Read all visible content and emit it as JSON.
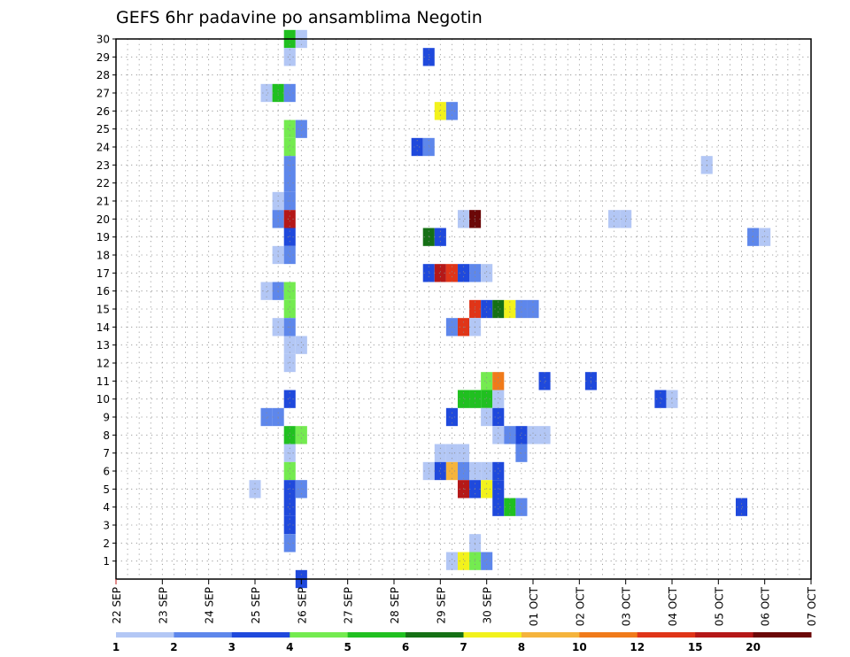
{
  "chart_data": {
    "type": "heatmap",
    "title": "GEFS 6hr padavine po ansamblima Negotin",
    "x_tick_labels": [
      "22 SEP",
      "23 SEP",
      "24 SEP",
      "25 SEP",
      "26 SEP",
      "27 SEP",
      "28 SEP",
      "29 SEP",
      "30 SEP",
      "01 OCT",
      "02 OCT",
      "03 OCT",
      "04 OCT",
      "05 OCT",
      "06 OCT",
      "07 OCT"
    ],
    "y_tick_labels": [
      "1",
      "2",
      "3",
      "4",
      "5",
      "6",
      "7",
      "8",
      "9",
      "10",
      "11",
      "12",
      "13",
      "14",
      "15",
      "16",
      "17",
      "18",
      "19",
      "20",
      "21",
      "22",
      "23",
      "24",
      "25",
      "26",
      "27",
      "28",
      "29",
      "30"
    ],
    "xlim_days": [
      0,
      15
    ],
    "ylim": [
      0,
      30
    ],
    "grid": true,
    "step_hours": 6,
    "colorbar": {
      "labels": [
        "1",
        "2",
        "3",
        "4",
        "5",
        "6",
        "7",
        "8",
        "10",
        "12",
        "15",
        "20"
      ],
      "colors": [
        "#b3c7f5",
        "#5e87eb",
        "#1f49dc",
        "#74eb50",
        "#20c020",
        "#157015",
        "#f2f21c",
        "#f5b43c",
        "#f07a1a",
        "#e03518",
        "#b51818",
        "#6b0808"
      ]
    },
    "cells": [
      {
        "m": 30,
        "d": 3.75,
        "c": 5
      },
      {
        "m": 30,
        "d": 4.0,
        "c": 1
      },
      {
        "m": 29,
        "d": 3.75,
        "c": 1
      },
      {
        "m": 29,
        "d": 6.75,
        "c": 3
      },
      {
        "m": 27,
        "d": 3.25,
        "c": 1
      },
      {
        "m": 27,
        "d": 3.5,
        "c": 5
      },
      {
        "m": 27,
        "d": 3.75,
        "c": 2
      },
      {
        "m": 26,
        "d": 7.0,
        "c": 7
      },
      {
        "m": 26,
        "d": 7.25,
        "c": 2
      },
      {
        "m": 25,
        "d": 3.75,
        "c": 4
      },
      {
        "m": 25,
        "d": 4.0,
        "c": 2
      },
      {
        "m": 24,
        "d": 3.75,
        "c": 4
      },
      {
        "m": 24,
        "d": 6.5,
        "c": 3
      },
      {
        "m": 24,
        "d": 6.75,
        "c": 2
      },
      {
        "m": 23,
        "d": 3.75,
        "c": 2
      },
      {
        "m": 23,
        "d": 12.75,
        "c": 1
      },
      {
        "m": 22,
        "d": 3.75,
        "c": 2
      },
      {
        "m": 21,
        "d": 3.5,
        "c": 1
      },
      {
        "m": 21,
        "d": 3.75,
        "c": 2
      },
      {
        "m": 20,
        "d": 3.5,
        "c": 2
      },
      {
        "m": 20,
        "d": 3.75,
        "c": 11
      },
      {
        "m": 20,
        "d": 7.5,
        "c": 1
      },
      {
        "m": 20,
        "d": 7.75,
        "c": 12
      },
      {
        "m": 20,
        "d": 10.75,
        "c": 1
      },
      {
        "m": 20,
        "d": 11.0,
        "c": 1
      },
      {
        "m": 19,
        "d": 3.75,
        "c": 3
      },
      {
        "m": 19,
        "d": 6.75,
        "c": 6
      },
      {
        "m": 19,
        "d": 7.0,
        "c": 3
      },
      {
        "m": 19,
        "d": 13.75,
        "c": 2
      },
      {
        "m": 19,
        "d": 14.0,
        "c": 1
      },
      {
        "m": 18,
        "d": 3.5,
        "c": 1
      },
      {
        "m": 18,
        "d": 3.75,
        "c": 2
      },
      {
        "m": 17,
        "d": 6.75,
        "c": 3
      },
      {
        "m": 17,
        "d": 7.0,
        "c": 11
      },
      {
        "m": 17,
        "d": 7.25,
        "c": 10
      },
      {
        "m": 17,
        "d": 7.5,
        "c": 3
      },
      {
        "m": 17,
        "d": 7.75,
        "c": 2
      },
      {
        "m": 17,
        "d": 8.0,
        "c": 1
      },
      {
        "m": 16,
        "d": 3.25,
        "c": 1
      },
      {
        "m": 16,
        "d": 3.5,
        "c": 2
      },
      {
        "m": 16,
        "d": 3.75,
        "c": 4
      },
      {
        "m": 15,
        "d": 3.75,
        "c": 4
      },
      {
        "m": 15,
        "d": 7.75,
        "c": 10
      },
      {
        "m": 15,
        "d": 8.0,
        "c": 3
      },
      {
        "m": 15,
        "d": 8.25,
        "c": 6
      },
      {
        "m": 15,
        "d": 8.5,
        "c": 7
      },
      {
        "m": 15,
        "d": 8.75,
        "c": 2
      },
      {
        "m": 15,
        "d": 9.0,
        "c": 2
      },
      {
        "m": 14,
        "d": 3.5,
        "c": 1
      },
      {
        "m": 14,
        "d": 3.75,
        "c": 2
      },
      {
        "m": 14,
        "d": 7.25,
        "c": 2
      },
      {
        "m": 14,
        "d": 7.5,
        "c": 10
      },
      {
        "m": 14,
        "d": 7.75,
        "c": 1
      },
      {
        "m": 13,
        "d": 3.75,
        "c": 1
      },
      {
        "m": 13,
        "d": 4.0,
        "c": 1
      },
      {
        "m": 12,
        "d": 3.75,
        "c": 1
      },
      {
        "m": 11,
        "d": 8.0,
        "c": 4
      },
      {
        "m": 11,
        "d": 8.25,
        "c": 9
      },
      {
        "m": 11,
        "d": 9.25,
        "c": 3
      },
      {
        "m": 11,
        "d": 10.25,
        "c": 3
      },
      {
        "m": 10,
        "d": 3.75,
        "c": 3
      },
      {
        "m": 10,
        "d": 7.5,
        "c": 5
      },
      {
        "m": 10,
        "d": 7.75,
        "c": 5
      },
      {
        "m": 10,
        "d": 8.0,
        "c": 5
      },
      {
        "m": 10,
        "d": 8.25,
        "c": 1
      },
      {
        "m": 10,
        "d": 11.75,
        "c": 3
      },
      {
        "m": 10,
        "d": 12.0,
        "c": 1
      },
      {
        "m": 9,
        "d": 3.25,
        "c": 2
      },
      {
        "m": 9,
        "d": 3.5,
        "c": 2
      },
      {
        "m": 9,
        "d": 7.25,
        "c": 3
      },
      {
        "m": 9,
        "d": 8.0,
        "c": 1
      },
      {
        "m": 9,
        "d": 8.25,
        "c": 3
      },
      {
        "m": 8,
        "d": 3.75,
        "c": 5
      },
      {
        "m": 8,
        "d": 4.0,
        "c": 4
      },
      {
        "m": 8,
        "d": 8.25,
        "c": 1
      },
      {
        "m": 8,
        "d": 8.5,
        "c": 2
      },
      {
        "m": 8,
        "d": 8.75,
        "c": 3
      },
      {
        "m": 8,
        "d": 9.0,
        "c": 1
      },
      {
        "m": 8,
        "d": 9.25,
        "c": 1
      },
      {
        "m": 7,
        "d": 3.75,
        "c": 1
      },
      {
        "m": 7,
        "d": 7.0,
        "c": 1
      },
      {
        "m": 7,
        "d": 7.25,
        "c": 1
      },
      {
        "m": 7,
        "d": 7.5,
        "c": 1
      },
      {
        "m": 7,
        "d": 8.75,
        "c": 2
      },
      {
        "m": 6,
        "d": 3.75,
        "c": 4
      },
      {
        "m": 6,
        "d": 6.75,
        "c": 1
      },
      {
        "m": 6,
        "d": 7.0,
        "c": 3
      },
      {
        "m": 6,
        "d": 7.25,
        "c": 8
      },
      {
        "m": 6,
        "d": 7.5,
        "c": 2
      },
      {
        "m": 6,
        "d": 7.75,
        "c": 1
      },
      {
        "m": 6,
        "d": 8.0,
        "c": 1
      },
      {
        "m": 6,
        "d": 8.25,
        "c": 3
      },
      {
        "m": 5,
        "d": 3.0,
        "c": 1
      },
      {
        "m": 5,
        "d": 3.75,
        "c": 3
      },
      {
        "m": 5,
        "d": 4.0,
        "c": 2
      },
      {
        "m": 5,
        "d": 7.5,
        "c": 11
      },
      {
        "m": 5,
        "d": 7.75,
        "c": 3
      },
      {
        "m": 5,
        "d": 8.0,
        "c": 7
      },
      {
        "m": 5,
        "d": 8.25,
        "c": 3
      },
      {
        "m": 4,
        "d": 3.75,
        "c": 3
      },
      {
        "m": 4,
        "d": 8.25,
        "c": 3
      },
      {
        "m": 4,
        "d": 8.5,
        "c": 5
      },
      {
        "m": 4,
        "d": 8.75,
        "c": 2
      },
      {
        "m": 4,
        "d": 13.5,
        "c": 3
      },
      {
        "m": 3,
        "d": 3.75,
        "c": 3
      },
      {
        "m": 2,
        "d": 3.75,
        "c": 2
      },
      {
        "m": 2,
        "d": 7.75,
        "c": 1
      },
      {
        "m": 1,
        "d": 7.25,
        "c": 1
      },
      {
        "m": 1,
        "d": 7.5,
        "c": 7
      },
      {
        "m": 1,
        "d": 7.75,
        "c": 4
      },
      {
        "m": 1,
        "d": 8.0,
        "c": 2
      },
      {
        "m": 0,
        "d": 4.0,
        "c": 3
      }
    ]
  }
}
